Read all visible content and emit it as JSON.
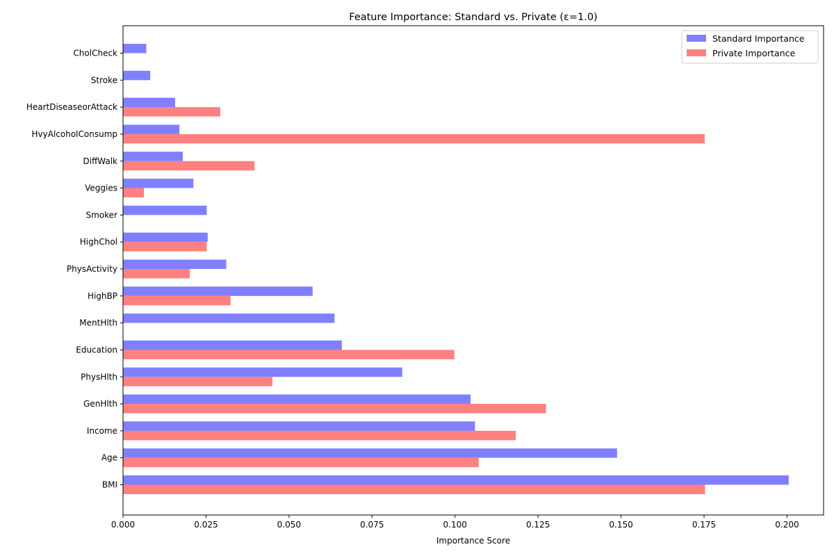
{
  "chart_data": {
    "type": "bar",
    "orientation": "horizontal",
    "title": "Feature Importance: Standard vs. Private (ε=1.0)",
    "xlabel": "Importance Score",
    "ylabel": "",
    "xlim": [
      0,
      0.211
    ],
    "x_ticks": [
      0.0,
      0.025,
      0.05,
      0.075,
      0.1,
      0.125,
      0.15,
      0.175,
      0.2
    ],
    "x_tick_labels": [
      "0.000",
      "0.025",
      "0.050",
      "0.075",
      "0.100",
      "0.125",
      "0.150",
      "0.175",
      "0.200"
    ],
    "grid": false,
    "legend_position": "top-right",
    "categories": [
      "BMI",
      "Age",
      "Income",
      "GenHlth",
      "PhysHlth",
      "Education",
      "MentHlth",
      "HighBP",
      "PhysActivity",
      "HighChol",
      "Smoker",
      "Veggies",
      "DiffWalk",
      "HvyAlcoholConsump",
      "HeartDiseaseorAttack",
      "Stroke",
      "CholCheck"
    ],
    "series": [
      {
        "name": "Standard Importance",
        "color": "#4a4aff",
        "values": [
          0.2005,
          0.1488,
          0.106,
          0.1047,
          0.0841,
          0.0659,
          0.0637,
          0.0571,
          0.0311,
          0.0255,
          0.0252,
          0.0212,
          0.018,
          0.017,
          0.0157,
          0.0082,
          0.007
        ]
      },
      {
        "name": "Private Importance",
        "color": "#ff4a4a",
        "values": [
          0.1753,
          0.1071,
          0.1183,
          0.1274,
          0.045,
          0.0998,
          0.0,
          0.0324,
          0.0201,
          0.0252,
          0.0,
          0.0063,
          0.0396,
          0.1752,
          0.0293,
          0.0,
          0.0
        ]
      }
    ]
  }
}
